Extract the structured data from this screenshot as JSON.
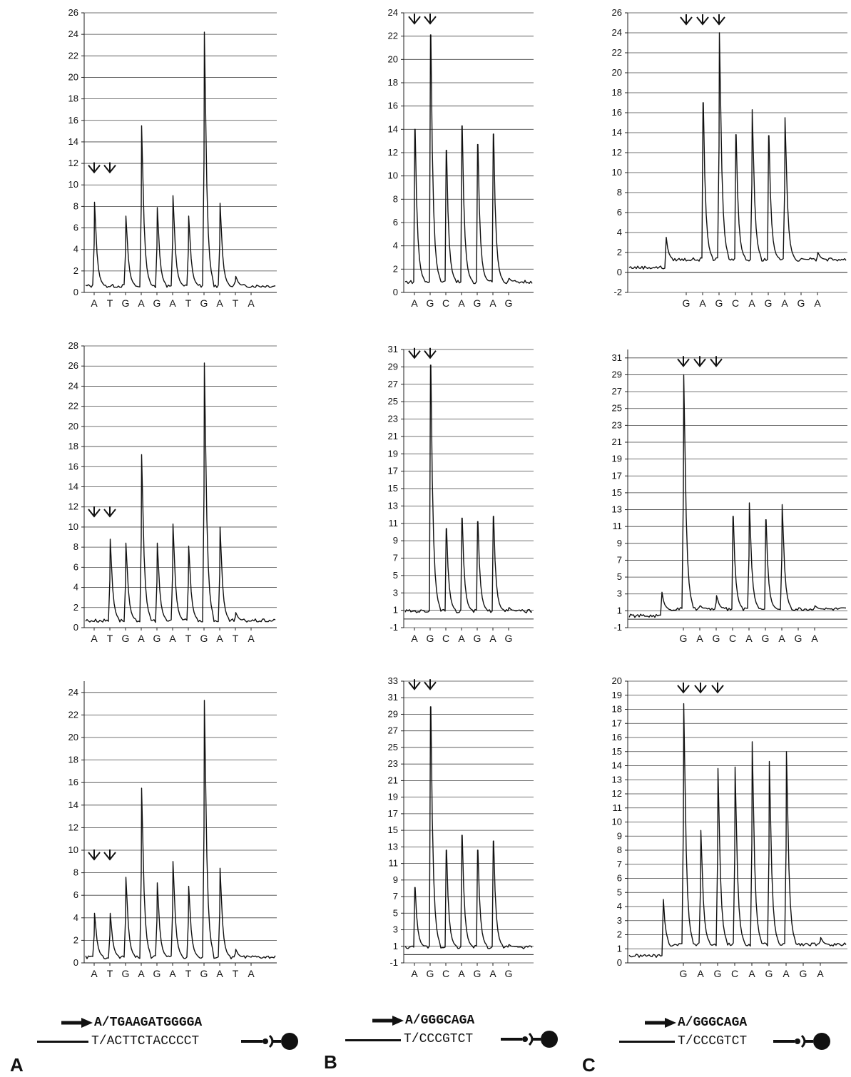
{
  "chart_data": [
    {
      "type": "line",
      "panel": "A",
      "ylim": [
        0,
        26
      ],
      "yticks": [
        "0",
        "2",
        "4",
        "6",
        "8",
        "10",
        "12",
        "14",
        "16",
        "18",
        "20",
        "22",
        "24",
        "26"
      ],
      "categories": [
        "A",
        "T",
        "G",
        "A",
        "G",
        "A",
        "T",
        "G",
        "A",
        "T",
        "A"
      ],
      "baseline": 0.6,
      "values": [
        8.4,
        0.6,
        7.1,
        15.5,
        7.9,
        9.0,
        7.1,
        24.2,
        8.3,
        1.5,
        0.6
      ],
      "arrows_at": [
        0,
        1
      ],
      "arrow_level": 11.3
    },
    {
      "type": "line",
      "panel": "B",
      "ylim": [
        0,
        24
      ],
      "yticks": [
        "0",
        "2",
        "4",
        "6",
        "8",
        "10",
        "12",
        "14",
        "16",
        "18",
        "20",
        "22",
        "24"
      ],
      "categories": [
        "A",
        "G",
        "C",
        "A",
        "G",
        "A",
        "G"
      ],
      "baseline": 0.9,
      "values": [
        14.0,
        22.1,
        12.2,
        14.3,
        12.7,
        13.6,
        1.2
      ],
      "arrows_at": [
        0,
        1
      ],
      "arrow_level": 23.2
    },
    {
      "type": "line",
      "panel": "C",
      "ylim": [
        -2,
        26
      ],
      "yticks": [
        "-2",
        "0",
        "2",
        "4",
        "6",
        "8",
        "10",
        "12",
        "14",
        "16",
        "18",
        "20",
        "22",
        "24",
        "26"
      ],
      "categories": [
        "G",
        "A",
        "G",
        "C",
        "A",
        "G",
        "A",
        "G",
        "A"
      ],
      "baseline": 1.3,
      "pre_peak": 4.4,
      "values": [
        1.3,
        17.0,
        24.0,
        13.8,
        16.3,
        13.7,
        15.5,
        1.4,
        2.0
      ],
      "arrows_at": [
        0,
        1,
        2
      ],
      "arrow_level": 25.0
    },
    {
      "type": "line",
      "panel": "A",
      "ylim": [
        0,
        28
      ],
      "yticks": [
        "0",
        "2",
        "4",
        "6",
        "8",
        "10",
        "12",
        "14",
        "16",
        "18",
        "20",
        "22",
        "24",
        "26",
        "28"
      ],
      "categories": [
        "A",
        "T",
        "G",
        "A",
        "G",
        "A",
        "T",
        "G",
        "A",
        "T",
        "A"
      ],
      "baseline": 0.7,
      "values": [
        0.7,
        8.8,
        8.4,
        17.2,
        8.4,
        10.3,
        8.1,
        26.3,
        10.0,
        1.5,
        0.7
      ],
      "arrows_at": [
        0,
        1
      ],
      "arrow_level": 11.2
    },
    {
      "type": "line",
      "panel": "B",
      "ylim": [
        -1,
        31
      ],
      "yticks": [
        "-1",
        "1",
        "3",
        "5",
        "7",
        "9",
        "11",
        "13",
        "15",
        "17",
        "19",
        "21",
        "23",
        "25",
        "27",
        "29",
        "31"
      ],
      "categories": [
        "A",
        "G",
        "C",
        "A",
        "G",
        "A",
        "G"
      ],
      "baseline": 0.9,
      "values": [
        0.9,
        29.2,
        10.4,
        11.6,
        11.2,
        11.8,
        1.3
      ],
      "arrows_at": [
        0,
        1
      ],
      "arrow_level": 30.2
    },
    {
      "type": "line",
      "panel": "C",
      "ylim": [
        -1,
        32
      ],
      "yticks": [
        "-1",
        "1",
        "3",
        "5",
        "7",
        "9",
        "11",
        "13",
        "15",
        "17",
        "19",
        "21",
        "23",
        "25",
        "27",
        "29",
        "31"
      ],
      "categories": [
        "G",
        "A",
        "G",
        "C",
        "A",
        "G",
        "A",
        "G",
        "A"
      ],
      "baseline": 1.2,
      "pre_peak": 4.0,
      "values": [
        29.0,
        1.6,
        2.8,
        12.2,
        13.8,
        11.8,
        13.6,
        1.2,
        1.6
      ],
      "arrows_at": [
        0,
        1,
        2
      ],
      "arrow_level": 30.2
    },
    {
      "type": "line",
      "panel": "A",
      "ylim": [
        0,
        25
      ],
      "yticks": [
        "0",
        "2",
        "4",
        "6",
        "8",
        "10",
        "12",
        "14",
        "16",
        "18",
        "20",
        "22",
        "24"
      ],
      "categories": [
        "A",
        "T",
        "G",
        "A",
        "G",
        "A",
        "T",
        "G",
        "A",
        "T",
        "A"
      ],
      "baseline": 0.5,
      "values": [
        4.4,
        4.4,
        7.6,
        15.5,
        7.1,
        9.0,
        6.8,
        23.3,
        8.4,
        1.2,
        0.5
      ],
      "arrows_at": [
        0,
        1
      ],
      "arrow_level": 9.3
    },
    {
      "type": "line",
      "panel": "B",
      "ylim": [
        -1,
        33
      ],
      "yticks": [
        "-1",
        "1",
        "3",
        "5",
        "7",
        "9",
        "11",
        "13",
        "15",
        "17",
        "19",
        "21",
        "23",
        "25",
        "27",
        "29",
        "31",
        "33"
      ],
      "categories": [
        "A",
        "G",
        "C",
        "A",
        "G",
        "A",
        "G"
      ],
      "baseline": 0.9,
      "values": [
        8.1,
        29.9,
        12.6,
        14.4,
        12.6,
        13.7,
        1.2
      ],
      "arrows_at": [
        0,
        1
      ],
      "arrow_level": 32.2
    },
    {
      "type": "line",
      "panel": "C",
      "ylim": [
        0,
        20
      ],
      "yticks": [
        "0",
        "1",
        "2",
        "3",
        "4",
        "5",
        "6",
        "7",
        "8",
        "9",
        "10",
        "11",
        "12",
        "13",
        "14",
        "15",
        "16",
        "17",
        "18",
        "19",
        "20"
      ],
      "categories": [
        "G",
        "A",
        "G",
        "C",
        "A",
        "G",
        "A",
        "G",
        "A"
      ],
      "baseline": 1.3,
      "pre_peak": 4.5,
      "values": [
        18.4,
        9.4,
        13.8,
        13.9,
        15.7,
        14.3,
        15.0,
        1.3,
        1.8
      ],
      "arrows_at": [
        0,
        1,
        2
      ],
      "arrow_level": 19.3
    }
  ],
  "labels": {
    "A": {
      "letter": "A",
      "primer": "A/TGAAGATGGGGA",
      "template": "T/ACTTCTACCCCT"
    },
    "B": {
      "letter": "B",
      "primer": "A/GGGCAGA",
      "template": "T/CCCGTCT"
    },
    "C": {
      "letter": "C",
      "primer": "A/GGGCAGA",
      "template": "T/CCCGTCT"
    }
  }
}
